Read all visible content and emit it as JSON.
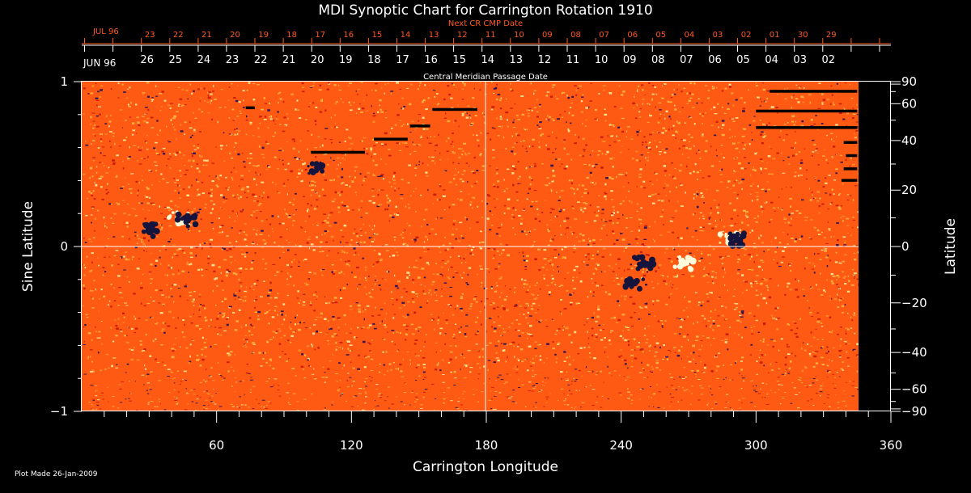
{
  "chart_data": {
    "type": "heatmap",
    "title": "MDI Synoptic Chart for Carrington Rotation 1910",
    "xlabel": "Carrington Longitude",
    "ylabel_left": "Sine Latitude",
    "ylabel_right": "Latitude",
    "xlim": [
      0,
      360
    ],
    "ylim": [
      -1,
      1
    ],
    "x_ticks": [
      60,
      120,
      180,
      240,
      300,
      360
    ],
    "y_ticks_left": [
      {
        "value": 1,
        "label": "1"
      },
      {
        "value": 0,
        "label": "0"
      },
      {
        "value": -1,
        "label": "−1"
      }
    ],
    "latitude_ticks": [
      {
        "deg": 90,
        "label": "90"
      },
      {
        "deg": 60,
        "label": "60"
      },
      {
        "deg": 40,
        "label": "40"
      },
      {
        "deg": 20,
        "label": "20"
      },
      {
        "deg": 0,
        "label": "0"
      },
      {
        "deg": -20,
        "label": "−20"
      },
      {
        "deg": -40,
        "label": "−40"
      },
      {
        "deg": -60,
        "label": "−60"
      },
      {
        "deg": -90,
        "label": "−90"
      }
    ],
    "next_cr_axis": {
      "caption": "Next CR CMP Date",
      "month_label": "JUL 96",
      "labels": [
        "23",
        "22",
        "21",
        "20",
        "19",
        "18",
        "17",
        "16",
        "15",
        "14",
        "13",
        "12",
        "11",
        "10",
        "09",
        "08",
        "07",
        "06",
        "05",
        "04",
        "03",
        "02",
        "01",
        "30",
        "29"
      ],
      "color": "#ff5a1e"
    },
    "cmp_axis": {
      "caption": "Central Meridian Passage Date",
      "month_label": "JUN 96",
      "labels": [
        "26",
        "25",
        "24",
        "23",
        "22",
        "21",
        "20",
        "19",
        "18",
        "17",
        "16",
        "15",
        "14",
        "13",
        "12",
        "11",
        "10",
        "09",
        "08",
        "07",
        "06",
        "05",
        "04",
        "03",
        "02"
      ]
    },
    "active_regions": [
      {
        "lon": 43,
        "sinlat": 0.17,
        "polarity": "white"
      },
      {
        "lon": 47,
        "sinlat": 0.16,
        "polarity": "black"
      },
      {
        "lon": 30,
        "sinlat": 0.1,
        "polarity": "black"
      },
      {
        "lon": 105,
        "sinlat": 0.48,
        "polarity": "black"
      },
      {
        "lon": 250,
        "sinlat": -0.1,
        "polarity": "black"
      },
      {
        "lon": 246,
        "sinlat": -0.22,
        "polarity": "black"
      },
      {
        "lon": 268,
        "sinlat": -0.1,
        "polarity": "white"
      },
      {
        "lon": 288,
        "sinlat": 0.04,
        "polarity": "white"
      },
      {
        "lon": 292,
        "sinlat": 0.04,
        "polarity": "black"
      }
    ],
    "data_gaps": [
      {
        "lon_start": 73,
        "lon_end": 77,
        "sinlat": 0.84
      },
      {
        "lon_start": 102,
        "lon_end": 126,
        "sinlat": 0.57
      },
      {
        "lon_start": 130,
        "lon_end": 145,
        "sinlat": 0.65
      },
      {
        "lon_start": 146,
        "lon_end": 155,
        "sinlat": 0.73
      },
      {
        "lon_start": 156,
        "lon_end": 176,
        "sinlat": 0.83
      },
      {
        "lon_start": 306,
        "lon_end": 345,
        "sinlat": 0.94
      },
      {
        "lon_start": 300,
        "lon_end": 345,
        "sinlat": 0.82
      },
      {
        "lon_start": 300,
        "lon_end": 345,
        "sinlat": 0.72
      },
      {
        "lon_start": 339,
        "lon_end": 345,
        "sinlat": 0.63
      },
      {
        "lon_start": 340,
        "lon_end": 345,
        "sinlat": 0.55
      },
      {
        "lon_start": 339,
        "lon_end": 345,
        "sinlat": 0.47
      },
      {
        "lon_start": 338,
        "lon_end": 345,
        "sinlat": 0.4
      }
    ],
    "colormap": {
      "background": "#ff5a14",
      "negative": "#14143c",
      "positive": "#ffffdc"
    },
    "grid": "crosshair at longitude 180 and sine latitude 0"
  },
  "footer": {
    "plot_made": "Plot Made 26-Jan-2009"
  }
}
